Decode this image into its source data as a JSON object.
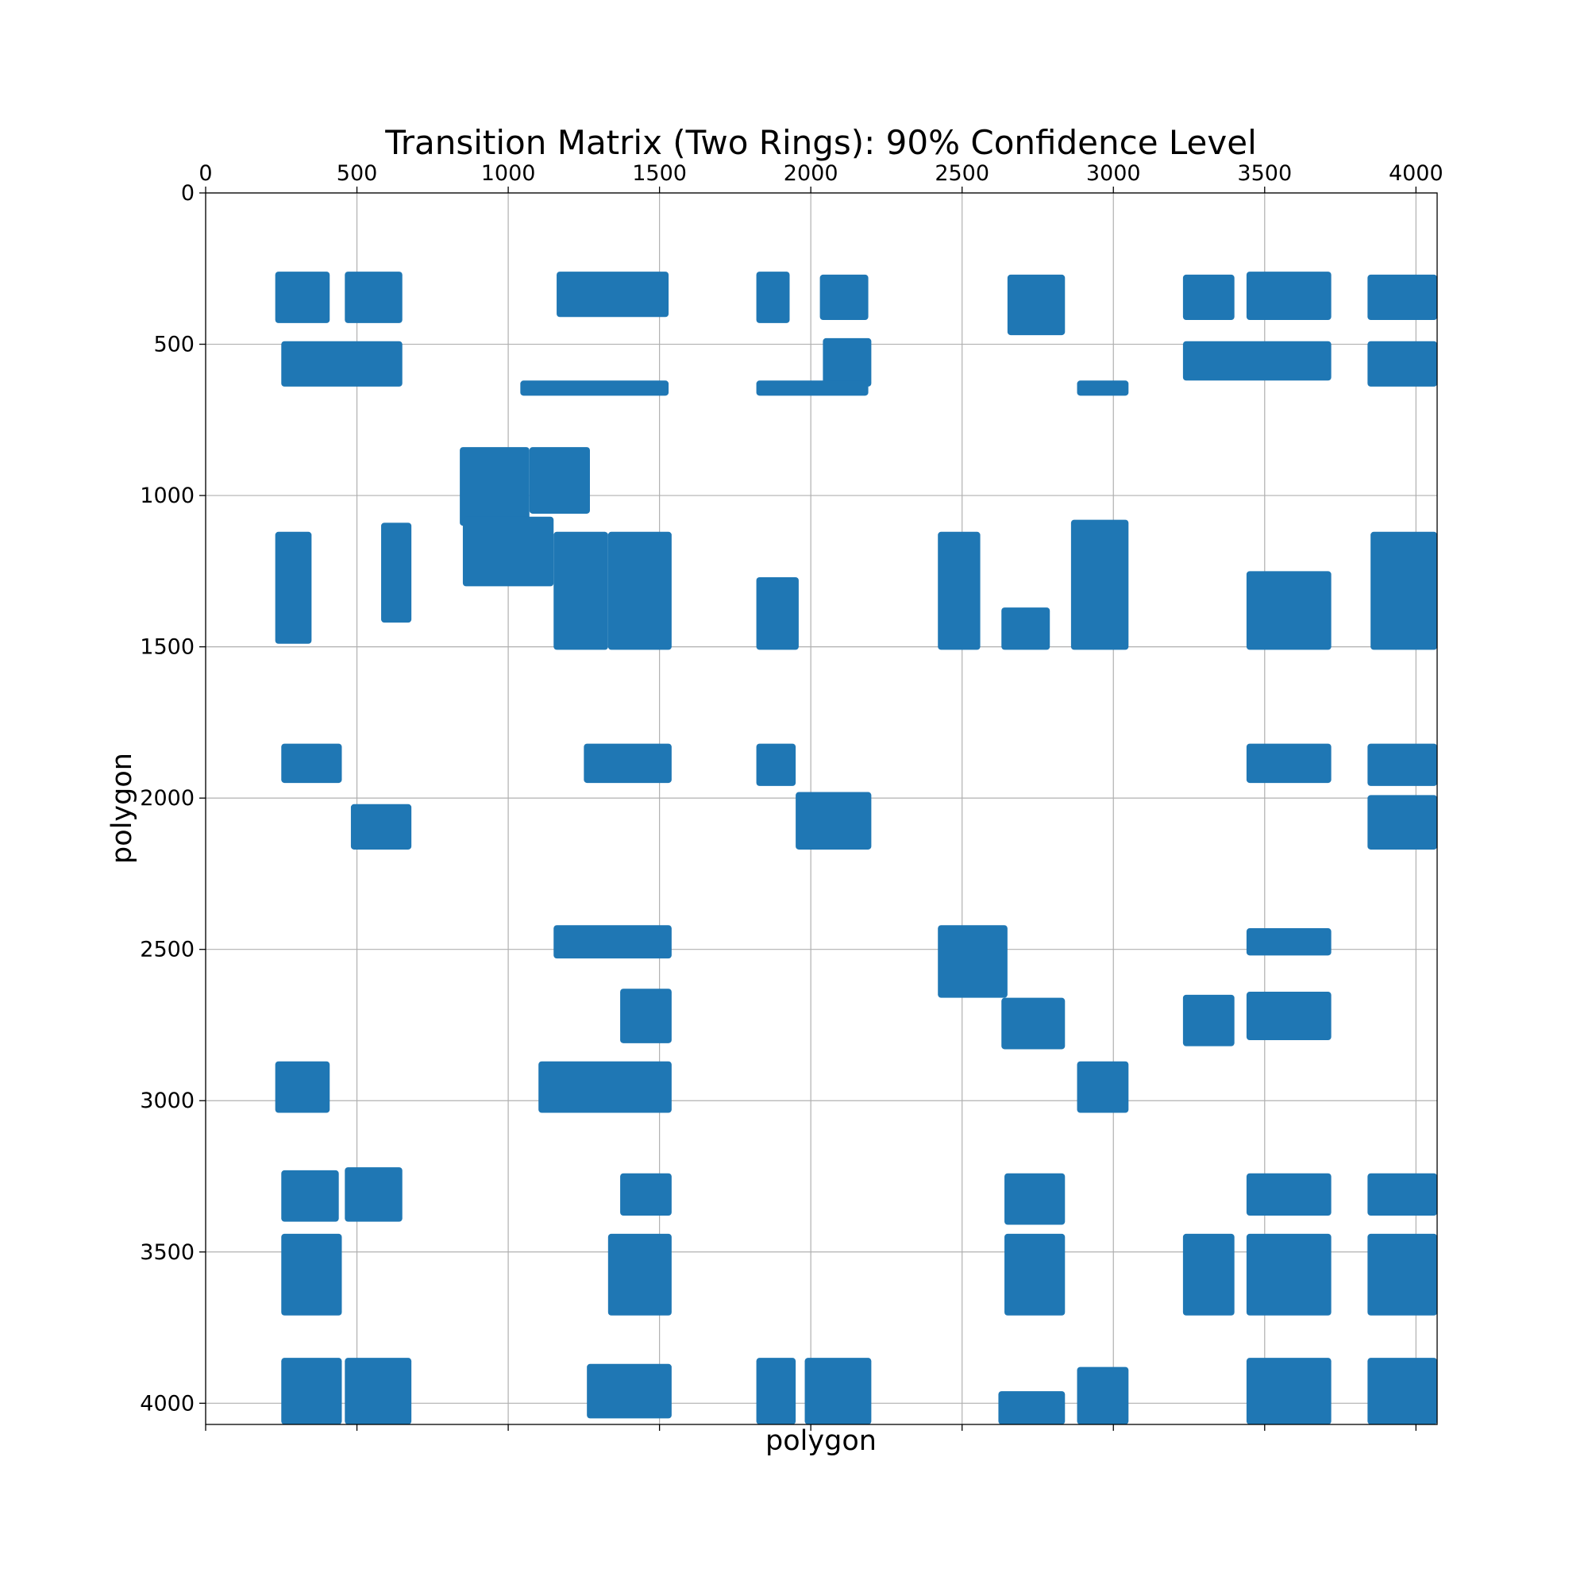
{
  "chart_data": {
    "type": "heatmap",
    "title": "Transition Matrix (Two Rings): 90% Confidence Level",
    "xlabel": "polygon",
    "ylabel": "polygon",
    "xlim": [
      0,
      4070
    ],
    "ylim": [
      0,
      4070
    ],
    "y_inverted": true,
    "x_axis_position": "top",
    "grid": true,
    "x_ticks": [
      0,
      500,
      1000,
      1500,
      2000,
      2500,
      3000,
      3500,
      4000
    ],
    "y_ticks": [
      0,
      500,
      1000,
      1500,
      2000,
      2500,
      3000,
      3500,
      4000
    ],
    "x_tick_labels": [
      "0",
      "500",
      "1000",
      "1500",
      "2000",
      "2500",
      "3000",
      "3500",
      "4000"
    ],
    "y_tick_labels": [
      "0",
      "500",
      "1000",
      "1500",
      "2000",
      "2500",
      "3000",
      "3500",
      "4000"
    ],
    "marker_color": "#1f77b4",
    "nonzero_blocks": [
      [
        230,
        410,
        260,
        430
      ],
      [
        460,
        650,
        260,
        430
      ],
      [
        1160,
        1530,
        260,
        410
      ],
      [
        1820,
        1930,
        260,
        430
      ],
      [
        2030,
        2190,
        270,
        420
      ],
      [
        2650,
        2840,
        270,
        470
      ],
      [
        3230,
        3400,
        270,
        420
      ],
      [
        3440,
        3720,
        260,
        420
      ],
      [
        3840,
        4070,
        270,
        420
      ],
      [
        250,
        650,
        490,
        640
      ],
      [
        3230,
        3720,
        490,
        620
      ],
      [
        3840,
        4070,
        490,
        640
      ],
      [
        2040,
        2200,
        480,
        640
      ],
      [
        1040,
        1530,
        620,
        670
      ],
      [
        1820,
        2190,
        620,
        670
      ],
      [
        2880,
        3050,
        620,
        670
      ],
      [
        840,
        1070,
        840,
        1100
      ],
      [
        1070,
        1270,
        840,
        1060
      ],
      [
        850,
        1150,
        1070,
        1300
      ],
      [
        1150,
        1330,
        1120,
        1510
      ],
      [
        1330,
        1540,
        1120,
        1510
      ],
      [
        1820,
        1960,
        1270,
        1510
      ],
      [
        2420,
        2560,
        1120,
        1510
      ],
      [
        2630,
        2790,
        1370,
        1510
      ],
      [
        2860,
        3050,
        1080,
        1510
      ],
      [
        3440,
        3720,
        1250,
        1510
      ],
      [
        3850,
        4070,
        1120,
        1510
      ],
      [
        230,
        350,
        1120,
        1490
      ],
      [
        580,
        680,
        1090,
        1420
      ],
      [
        250,
        450,
        1820,
        1950
      ],
      [
        1250,
        1540,
        1820,
        1950
      ],
      [
        1820,
        1950,
        1820,
        1960
      ],
      [
        3440,
        3720,
        1820,
        1950
      ],
      [
        3840,
        4070,
        1820,
        1960
      ],
      [
        480,
        680,
        2020,
        2170
      ],
      [
        1950,
        2200,
        1980,
        2170
      ],
      [
        3840,
        4070,
        1990,
        2170
      ],
      [
        1150,
        1540,
        2420,
        2530
      ],
      [
        2420,
        2650,
        2420,
        2660
      ],
      [
        3440,
        3720,
        2430,
        2520
      ],
      [
        1370,
        1540,
        2630,
        2810
      ],
      [
        2630,
        2840,
        2660,
        2830
      ],
      [
        3230,
        3400,
        2650,
        2820
      ],
      [
        3440,
        3720,
        2640,
        2800
      ],
      [
        1100,
        1540,
        2870,
        3040
      ],
      [
        2880,
        3050,
        2870,
        3040
      ],
      [
        230,
        410,
        2870,
        3040
      ],
      [
        250,
        440,
        3230,
        3400
      ],
      [
        460,
        650,
        3220,
        3400
      ],
      [
        1370,
        1540,
        3240,
        3380
      ],
      [
        2640,
        2840,
        3240,
        3410
      ],
      [
        3440,
        3720,
        3240,
        3380
      ],
      [
        3840,
        4070,
        3240,
        3380
      ],
      [
        250,
        450,
        3440,
        3710
      ],
      [
        1330,
        1540,
        3440,
        3710
      ],
      [
        2640,
        2840,
        3440,
        3710
      ],
      [
        3230,
        3400,
        3440,
        3710
      ],
      [
        3440,
        3720,
        3440,
        3710
      ],
      [
        3840,
        4070,
        3440,
        3710
      ],
      [
        250,
        450,
        3850,
        4070
      ],
      [
        460,
        680,
        3850,
        4070
      ],
      [
        1820,
        1950,
        3850,
        4070
      ],
      [
        1980,
        2200,
        3850,
        4070
      ],
      [
        3440,
        3720,
        3850,
        4070
      ],
      [
        3840,
        4070,
        3850,
        4070
      ],
      [
        1260,
        1540,
        3870,
        4050
      ],
      [
        2880,
        3050,
        3880,
        4070
      ],
      [
        2620,
        2840,
        3960,
        4070
      ]
    ]
  }
}
